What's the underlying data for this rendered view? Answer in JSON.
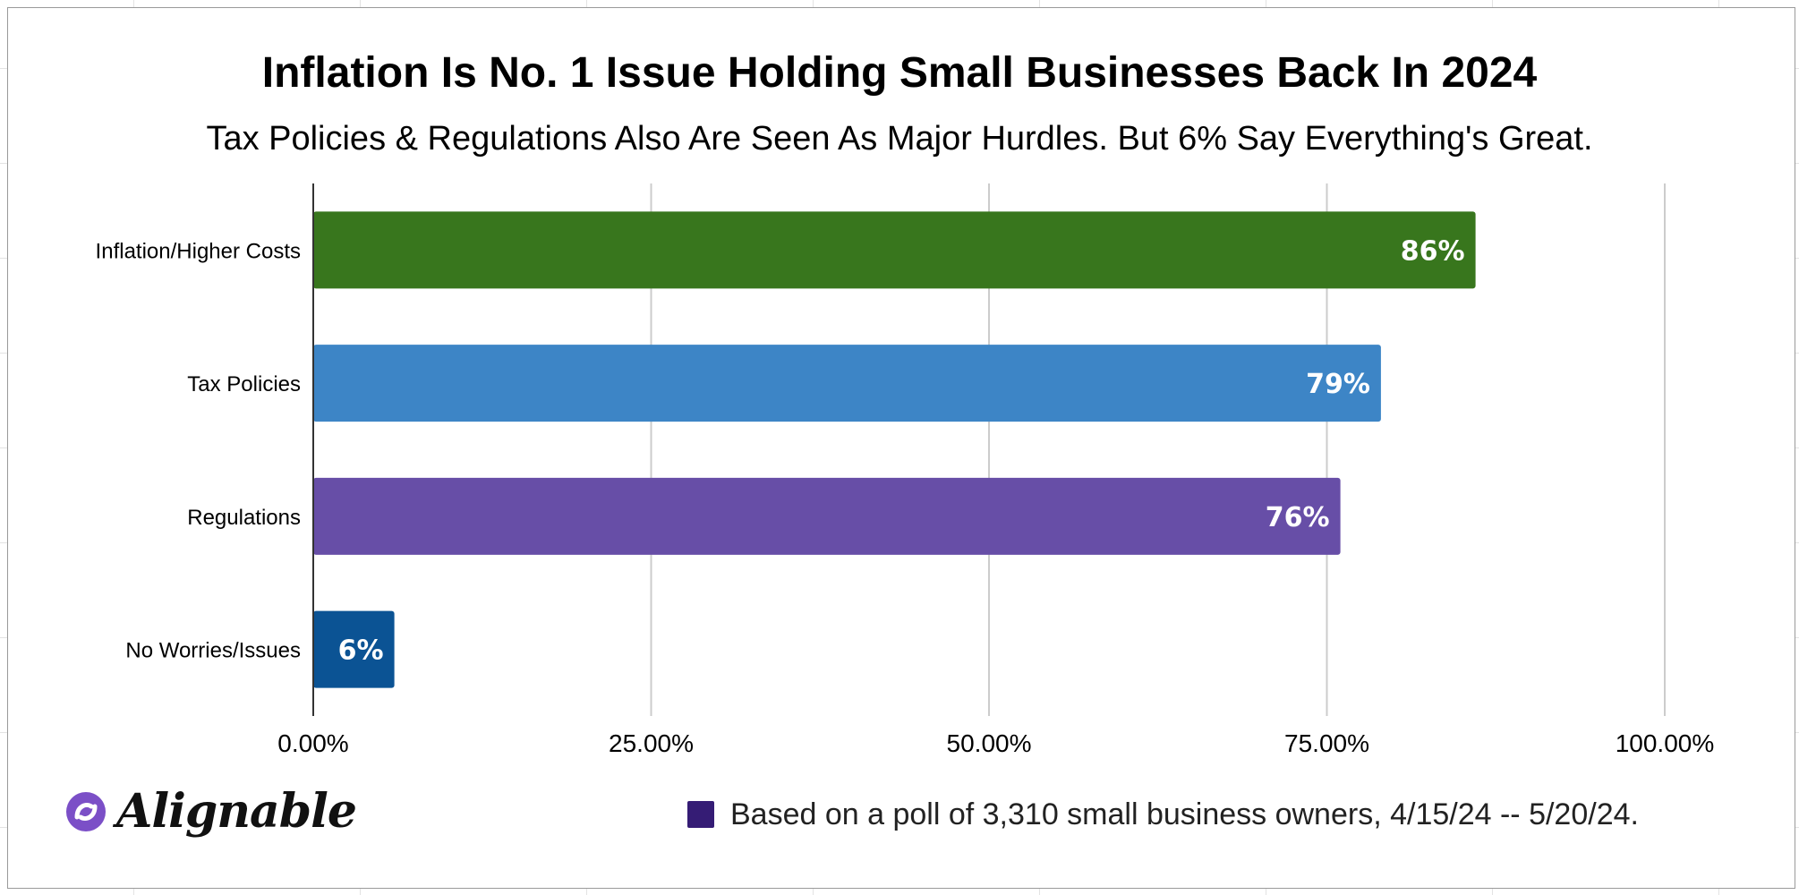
{
  "chart_data": {
    "type": "bar",
    "orientation": "horizontal",
    "title": "Inflation Is No. 1 Issue Holding Small Businesses Back In 2024",
    "subtitle": "Tax Policies & Regulations Also Are Seen As Major Hurdles. But 6% Say Everything's Great.",
    "categories": [
      "Inflation/Higher Costs",
      "Tax Policies",
      "Regulations",
      "No Worries/Issues"
    ],
    "values": [
      86,
      79,
      76,
      6
    ],
    "data_labels": [
      "86%",
      "79%",
      "76%",
      "6%"
    ],
    "colors": [
      "#38761d",
      "#3d85c6",
      "#674ea7",
      "#0b5394"
    ],
    "xlim": [
      0,
      100
    ],
    "x_ticks": [
      0,
      25,
      50,
      75,
      100
    ],
    "x_tick_labels": [
      "0.00%",
      "25.00%",
      "50.00%",
      "75.00%",
      "100.00%"
    ],
    "grid": "vertical",
    "legend": {
      "position": "bottom-right",
      "label": "Based on a poll of 3,310 small business owners, 4/15/24 -- 5/20/24.",
      "color": "#351c75"
    }
  },
  "branding": {
    "logo_text": "Alignable",
    "logo_color": "#7b4fc7"
  }
}
